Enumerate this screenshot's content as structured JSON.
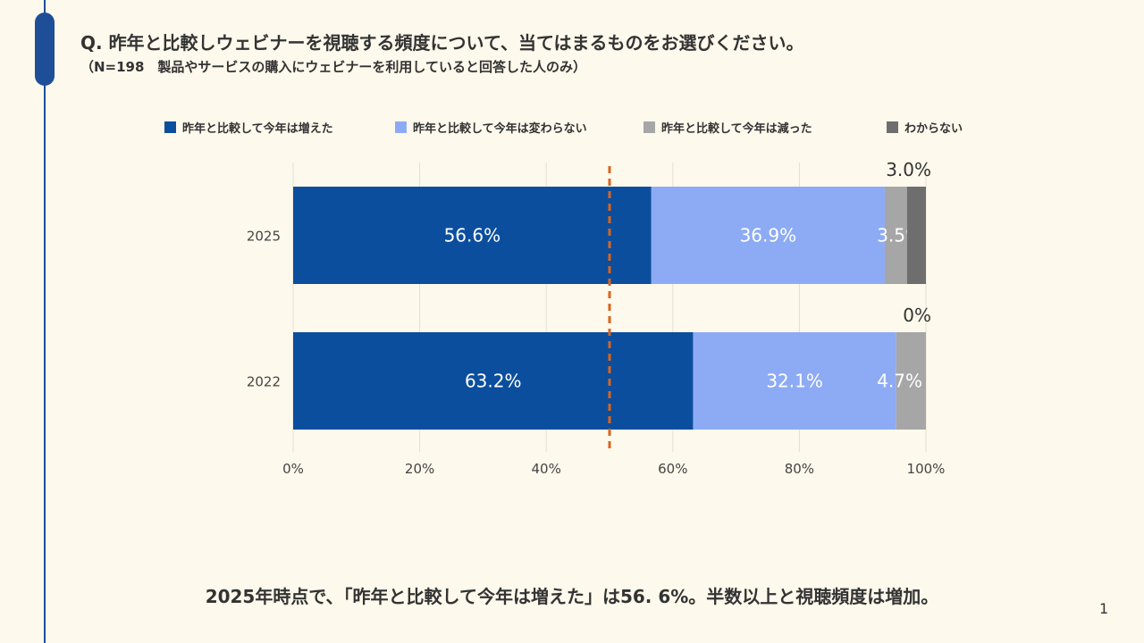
{
  "header": {
    "question": "Q. 昨年と比較しウェビナーを視聴する頻度について、当てはまるものをお選びください。",
    "note": "（N=198　製品やサービスの購入にウェビナーを利用していると回答した人のみ）"
  },
  "chart_data": {
    "type": "bar",
    "orientation": "horizontal",
    "stacked": true,
    "categories": [
      "2025",
      "2022"
    ],
    "series": [
      {
        "name": "昨年と比較して今年は増えた",
        "color": "#0B4E9E",
        "values": [
          56.6,
          63.2
        ],
        "labels": [
          "56.6%",
          "63.2%"
        ],
        "label_color": "#FFFFFF"
      },
      {
        "name": "昨年と比較して今年は変わらない",
        "color": "#8DABF5",
        "values": [
          36.9,
          32.1
        ],
        "labels": [
          "36.9%",
          "32.1%"
        ],
        "label_color": "#FFFFFF"
      },
      {
        "name": "昨年と比較して今年は減った",
        "color": "#A6A6A6",
        "values": [
          3.5,
          4.7
        ],
        "labels": [
          "3.5%",
          "4.7%"
        ],
        "label_color": "#FFFFFF"
      },
      {
        "name": "わからない",
        "color": "#6E6E6E",
        "values": [
          3.0,
          0
        ],
        "labels": [
          "3.0%",
          "0%"
        ],
        "label_color": "#333333"
      }
    ],
    "xlim": [
      0,
      100
    ],
    "xticks": [
      0,
      20,
      40,
      60,
      80,
      100
    ],
    "xtick_labels": [
      "0%",
      "20%",
      "40%",
      "60%",
      "80%",
      "100%"
    ],
    "reference_line": {
      "value": 50,
      "style": "dashed",
      "color": "#D9651E"
    },
    "legend_position": "top",
    "grid": "vertical"
  },
  "footer": {
    "conclusion": "2025年時点で、「昨年と比較して今年は増えた」は56. 6%。半数以上と視聴頻度は増加。",
    "page_number": "1"
  }
}
